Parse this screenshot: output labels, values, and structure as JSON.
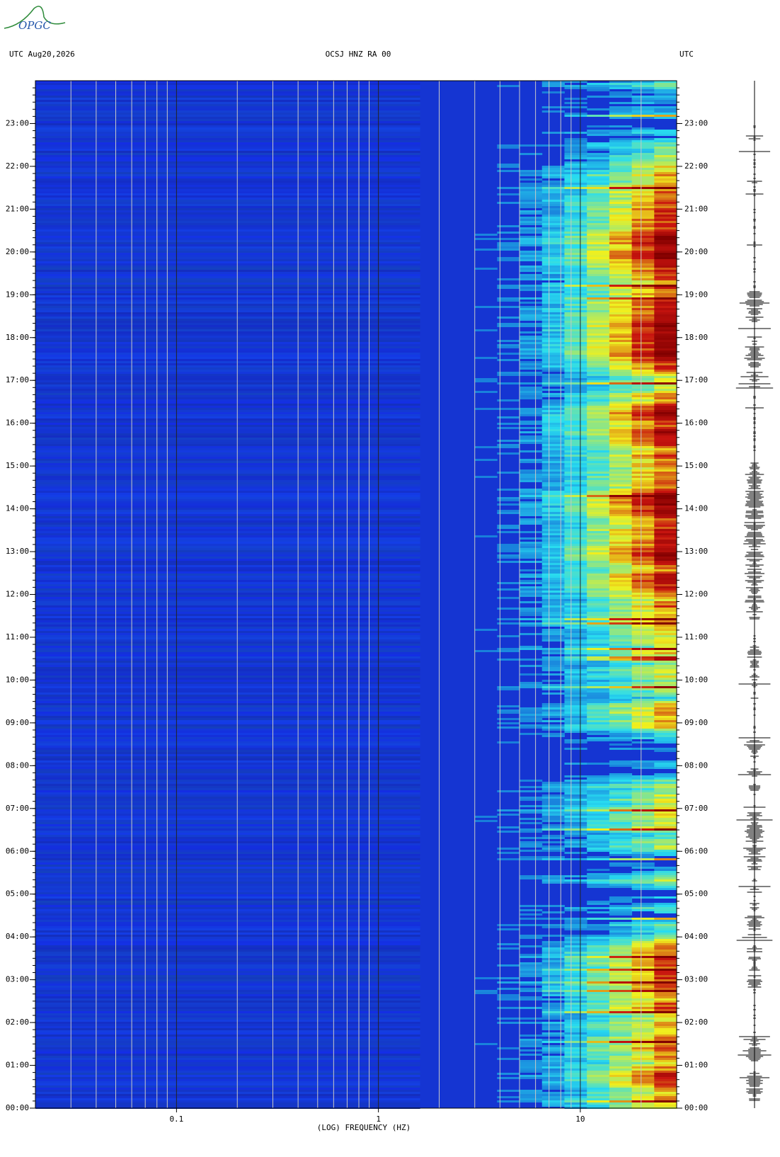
{
  "logo": "OPGC",
  "chart_data": {
    "type": "spectrogram",
    "title_left": "UTC  Aug20,2026",
    "title": "OCSJ HNZ RA 00",
    "title_right": "UTC",
    "x_label": "(LOG) FREQUENCY (HZ)",
    "x_scale": "log",
    "xlim": [
      0.02,
      30
    ],
    "xticks": [
      0.1,
      1,
      10
    ],
    "ylim": [
      0,
      24
    ],
    "yticks": [
      {
        "value": 0,
        "label": "00:00"
      },
      {
        "value": 1,
        "label": "01:00"
      },
      {
        "value": 2,
        "label": "02:00"
      },
      {
        "value": 3,
        "label": "03:00"
      },
      {
        "value": 4,
        "label": "04:00"
      },
      {
        "value": 5,
        "label": "05:00"
      },
      {
        "value": 6,
        "label": "06:00"
      },
      {
        "value": 7,
        "label": "07:00"
      },
      {
        "value": 8,
        "label": "08:00"
      },
      {
        "value": 9,
        "label": "09:00"
      },
      {
        "value": 10,
        "label": "10:00"
      },
      {
        "value": 11,
        "label": "11:00"
      },
      {
        "value": 12,
        "label": "12:00"
      },
      {
        "value": 13,
        "label": "13:00"
      },
      {
        "value": 14,
        "label": "14:00"
      },
      {
        "value": 15,
        "label": "15:00"
      },
      {
        "value": 16,
        "label": "16:00"
      },
      {
        "value": 17,
        "label": "17:00"
      },
      {
        "value": 18,
        "label": "18:00"
      },
      {
        "value": 19,
        "label": "19:00"
      },
      {
        "value": 20,
        "label": "20:00"
      },
      {
        "value": 21,
        "label": "21:00"
      },
      {
        "value": 22,
        "label": "22:00"
      },
      {
        "value": 23,
        "label": "23:00"
      }
    ],
    "grid": true
  }
}
